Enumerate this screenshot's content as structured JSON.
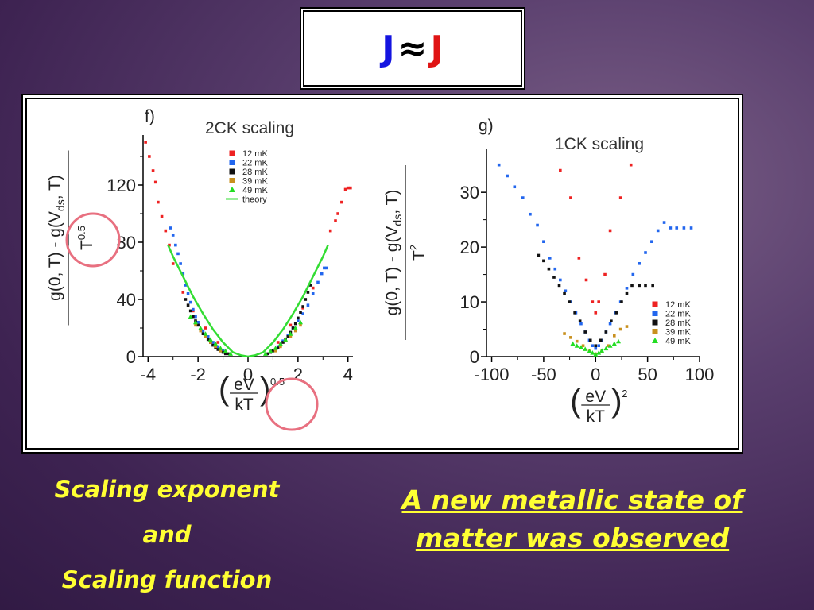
{
  "slide": {
    "title_left": "J",
    "title_sym": "≈",
    "title_right": "J",
    "caption_left": [
      "Scaling exponent",
      "and",
      "Scaling function"
    ],
    "caption_right": [
      "A new metallic state of",
      "matter was observed"
    ]
  },
  "colors": {
    "12 mK": "#ee2222",
    "22 mK": "#2266ee",
    "28 mK": "#111111",
    "39 mK": "#c8901e",
    "49 mK": "#22dd22",
    "theory": "#33dd33",
    "caption": "#ffff33",
    "circle": "#e87080"
  },
  "chart_data": [
    {
      "type": "scatter",
      "panel_label": "f)",
      "title": "2CK scaling",
      "ylabel_num": "g(0, T) - g(V",
      "ylabel_sub": "ds",
      "ylabel_tail": ", T)",
      "ylabel_den": "T",
      "ylabel_den_exp": "0.5",
      "xlabel_num": "eV",
      "xlabel_den": "kT",
      "xlabel_exp": "0.5",
      "xlim": [
        -4.2,
        4.2
      ],
      "ylim": [
        0,
        155
      ],
      "xticks": [
        "-4",
        "-2",
        "0",
        "2",
        "4"
      ],
      "yticks": [
        "0",
        "40",
        "80",
        "120"
      ],
      "legend": [
        "12 mK",
        "22 mK",
        "28 mK",
        "39 mK",
        "49 mK",
        "theory"
      ],
      "series": [
        {
          "name": "12 mK",
          "marker": "square",
          "points": [
            [
              -4.1,
              150
            ],
            [
              -3.95,
              140
            ],
            [
              -3.8,
              130
            ],
            [
              -3.7,
              122
            ],
            [
              -3.6,
              108
            ],
            [
              -3.45,
              98
            ],
            [
              -3.3,
              88
            ],
            [
              -3.15,
              78
            ],
            [
              -3.0,
              65
            ],
            [
              -2.6,
              45
            ],
            [
              -2.2,
              32
            ],
            [
              -1.7,
              20
            ],
            [
              -1.2,
              10
            ],
            [
              1.2,
              10
            ],
            [
              1.7,
              22
            ],
            [
              2.2,
              34
            ],
            [
              2.6,
              48
            ],
            [
              3.3,
              88
            ],
            [
              3.5,
              95
            ],
            [
              3.6,
              100
            ],
            [
              3.75,
              108
            ],
            [
              3.9,
              117
            ],
            [
              4.0,
              118
            ],
            [
              4.1,
              118
            ]
          ]
        },
        {
          "name": "22 mK",
          "marker": "square",
          "points": [
            [
              -3.1,
              90
            ],
            [
              -3.0,
              85
            ],
            [
              -2.9,
              78
            ],
            [
              -2.8,
              72
            ],
            [
              -2.7,
              65
            ],
            [
              -2.6,
              58
            ],
            [
              -2.5,
              50
            ],
            [
              -2.4,
              44
            ],
            [
              -2.3,
              38
            ],
            [
              -2.2,
              33
            ],
            [
              -2.1,
              28
            ],
            [
              -2.0,
              24
            ],
            [
              -1.8,
              18
            ],
            [
              -1.6,
              14
            ],
            [
              -1.4,
              10
            ],
            [
              -1.2,
              7
            ],
            [
              -1.0,
              4
            ],
            [
              1.0,
              4
            ],
            [
              1.2,
              7
            ],
            [
              1.4,
              11
            ],
            [
              1.6,
              15
            ],
            [
              1.8,
              20
            ],
            [
              2.0,
              25
            ],
            [
              2.2,
              30
            ],
            [
              2.4,
              36
            ],
            [
              2.6,
              44
            ],
            [
              2.8,
              52
            ],
            [
              2.95,
              58
            ],
            [
              3.05,
              62
            ],
            [
              3.15,
              62
            ]
          ]
        },
        {
          "name": "28 mK",
          "marker": "square",
          "points": [
            [
              -2.5,
              40
            ],
            [
              -2.4,
              36
            ],
            [
              -2.3,
              32
            ],
            [
              -2.2,
              28
            ],
            [
              -2.1,
              25
            ],
            [
              -2.0,
              22
            ],
            [
              -1.9,
              19
            ],
            [
              -1.8,
              16
            ],
            [
              -1.7,
              14
            ],
            [
              -1.6,
              12
            ],
            [
              -1.5,
              10
            ],
            [
              -1.4,
              8
            ],
            [
              -1.3,
              6
            ],
            [
              -1.2,
              5
            ],
            [
              -1.1,
              4
            ],
            [
              -1.0,
              3
            ],
            [
              -0.9,
              2
            ],
            [
              -0.8,
              2
            ],
            [
              0.8,
              2
            ],
            [
              0.9,
              3
            ],
            [
              1.0,
              4
            ],
            [
              1.1,
              5
            ],
            [
              1.2,
              6
            ],
            [
              1.3,
              8
            ],
            [
              1.4,
              10
            ],
            [
              1.5,
              12
            ],
            [
              1.6,
              14
            ],
            [
              1.7,
              17
            ],
            [
              1.8,
              20
            ],
            [
              1.9,
              23
            ],
            [
              2.0,
              27
            ],
            [
              2.1,
              31
            ],
            [
              2.2,
              35
            ],
            [
              2.3,
              40
            ],
            [
              2.4,
              45
            ],
            [
              2.5,
              50
            ]
          ]
        },
        {
          "name": "39 mK",
          "marker": "square",
          "points": [
            [
              -2.1,
              22
            ],
            [
              -1.9,
              18
            ],
            [
              -1.7,
              14
            ],
            [
              -1.5,
              10
            ],
            [
              -1.3,
              7
            ],
            [
              -1.1,
              4
            ],
            [
              1.1,
              4
            ],
            [
              1.3,
              7
            ],
            [
              1.5,
              11
            ],
            [
              1.7,
              14
            ],
            [
              1.9,
              18
            ],
            [
              2.1,
              22
            ]
          ]
        },
        {
          "name": "49 mK",
          "marker": "triangle",
          "points": [
            [
              -2.3,
              28
            ],
            [
              -2.1,
              24
            ],
            [
              -1.9,
              20
            ],
            [
              -1.7,
              16
            ],
            [
              -1.5,
              12
            ],
            [
              -1.3,
              9
            ],
            [
              -1.1,
              6
            ],
            [
              -0.9,
              4
            ],
            [
              -0.7,
              2
            ],
            [
              0.7,
              2
            ],
            [
              0.9,
              4
            ],
            [
              1.1,
              6
            ],
            [
              1.3,
              9
            ],
            [
              1.5,
              12
            ],
            [
              1.7,
              16
            ],
            [
              1.9,
              20
            ],
            [
              2.1,
              24
            ]
          ]
        },
        {
          "name": "theory",
          "marker": "line",
          "points": [
            [
              -3.2,
              78
            ],
            [
              -3.0,
              70
            ],
            [
              -2.6,
              56
            ],
            [
              -2.2,
              42
            ],
            [
              -1.8,
              30
            ],
            [
              -1.4,
              19
            ],
            [
              -1.0,
              10
            ],
            [
              -0.6,
              3
            ],
            [
              -0.3,
              1
            ],
            [
              0,
              0
            ],
            [
              0.3,
              1
            ],
            [
              0.6,
              3
            ],
            [
              1.0,
              10
            ],
            [
              1.4,
              19
            ],
            [
              1.8,
              30
            ],
            [
              2.2,
              42
            ],
            [
              2.6,
              56
            ],
            [
              3.0,
              70
            ],
            [
              3.2,
              78
            ]
          ]
        }
      ]
    },
    {
      "type": "scatter",
      "panel_label": "g)",
      "title": "1CK scaling",
      "ylabel_num": "g(0, T) - g(V",
      "ylabel_sub": "ds",
      "ylabel_tail": ", T)",
      "ylabel_den": "T",
      "ylabel_den_exp": "2",
      "xlabel_num": "eV",
      "xlabel_den": "kT",
      "xlabel_exp": "2",
      "xlim": [
        -105,
        100
      ],
      "ylim": [
        0,
        38
      ],
      "xticks": [
        "-100",
        "-50",
        "0",
        "50",
        "100"
      ],
      "yticks": [
        "0",
        "10",
        "20",
        "30"
      ],
      "legend": [
        "12 mK",
        "22 mK",
        "28 mK",
        "39 mK",
        "49 mK"
      ],
      "series": [
        {
          "name": "12 mK",
          "marker": "square",
          "points": [
            [
              -34,
              34
            ],
            [
              -24,
              29
            ],
            [
              -16,
              18
            ],
            [
              -9,
              14
            ],
            [
              -3,
              10
            ],
            [
              0,
              8
            ],
            [
              3,
              10
            ],
            [
              9,
              15
            ],
            [
              14,
              23
            ],
            [
              24,
              29
            ],
            [
              34,
              35
            ]
          ]
        },
        {
          "name": "22 mK",
          "marker": "square",
          "points": [
            [
              -93,
              35
            ],
            [
              -85,
              33
            ],
            [
              -78,
              31
            ],
            [
              -70,
              29
            ],
            [
              -63,
              26
            ],
            [
              -56,
              24
            ],
            [
              -50,
              21
            ],
            [
              -44,
              18
            ],
            [
              -39,
              16
            ],
            [
              -34,
              14
            ],
            [
              -29,
              12
            ],
            [
              -24,
              10
            ],
            [
              -19,
              8
            ],
            [
              -14,
              6
            ],
            [
              -10,
              4.5
            ],
            [
              -6,
              3
            ],
            [
              -3,
              2
            ],
            [
              0,
              1.5
            ],
            [
              3,
              2
            ],
            [
              6,
              3
            ],
            [
              10,
              4.5
            ],
            [
              14,
              6
            ],
            [
              19,
              8
            ],
            [
              24,
              10
            ],
            [
              30,
              12.5
            ],
            [
              36,
              15
            ],
            [
              42,
              17
            ],
            [
              48,
              19
            ],
            [
              54,
              21
            ],
            [
              60,
              23
            ],
            [
              66,
              24.5
            ],
            [
              72,
              23.5
            ],
            [
              78,
              23.5
            ],
            [
              85,
              23.5
            ],
            [
              92,
              23.5
            ]
          ]
        },
        {
          "name": "28 mK",
          "marker": "square",
          "points": [
            [
              -55,
              18.5
            ],
            [
              -50,
              17.5
            ],
            [
              -45,
              16
            ],
            [
              -40,
              14.5
            ],
            [
              -35,
              13
            ],
            [
              -30,
              11.5
            ],
            [
              -25,
              10
            ],
            [
              -20,
              8
            ],
            [
              -15,
              6.5
            ],
            [
              -10,
              4.5
            ],
            [
              -5,
              3
            ],
            [
              0,
              2
            ],
            [
              5,
              3
            ],
            [
              10,
              4.5
            ],
            [
              15,
              6.5
            ],
            [
              20,
              8
            ],
            [
              25,
              10
            ],
            [
              30,
              11.5
            ],
            [
              35,
              13
            ],
            [
              42,
              13
            ],
            [
              48,
              13
            ],
            [
              55,
              13
            ]
          ]
        },
        {
          "name": "39 mK",
          "marker": "square",
          "points": [
            [
              -30,
              4.2
            ],
            [
              -24,
              3.5
            ],
            [
              -18,
              2.8
            ],
            [
              -12,
              2
            ],
            [
              -6,
              1
            ],
            [
              0,
              0.5
            ],
            [
              6,
              1
            ],
            [
              12,
              2
            ],
            [
              18,
              3.8
            ],
            [
              24,
              5
            ],
            [
              30,
              5.5
            ]
          ]
        },
        {
          "name": "49 mK",
          "marker": "triangle",
          "points": [
            [
              -22,
              2.4
            ],
            [
              -18,
              2
            ],
            [
              -14,
              1.7
            ],
            [
              -10,
              1.4
            ],
            [
              -6,
              1
            ],
            [
              -3,
              0.7
            ],
            [
              0,
              0.4
            ],
            [
              3,
              0.7
            ],
            [
              6,
              1.1
            ],
            [
              10,
              1.5
            ],
            [
              14,
              2
            ],
            [
              18,
              2.4
            ],
            [
              22,
              2.8
            ]
          ]
        }
      ]
    }
  ]
}
